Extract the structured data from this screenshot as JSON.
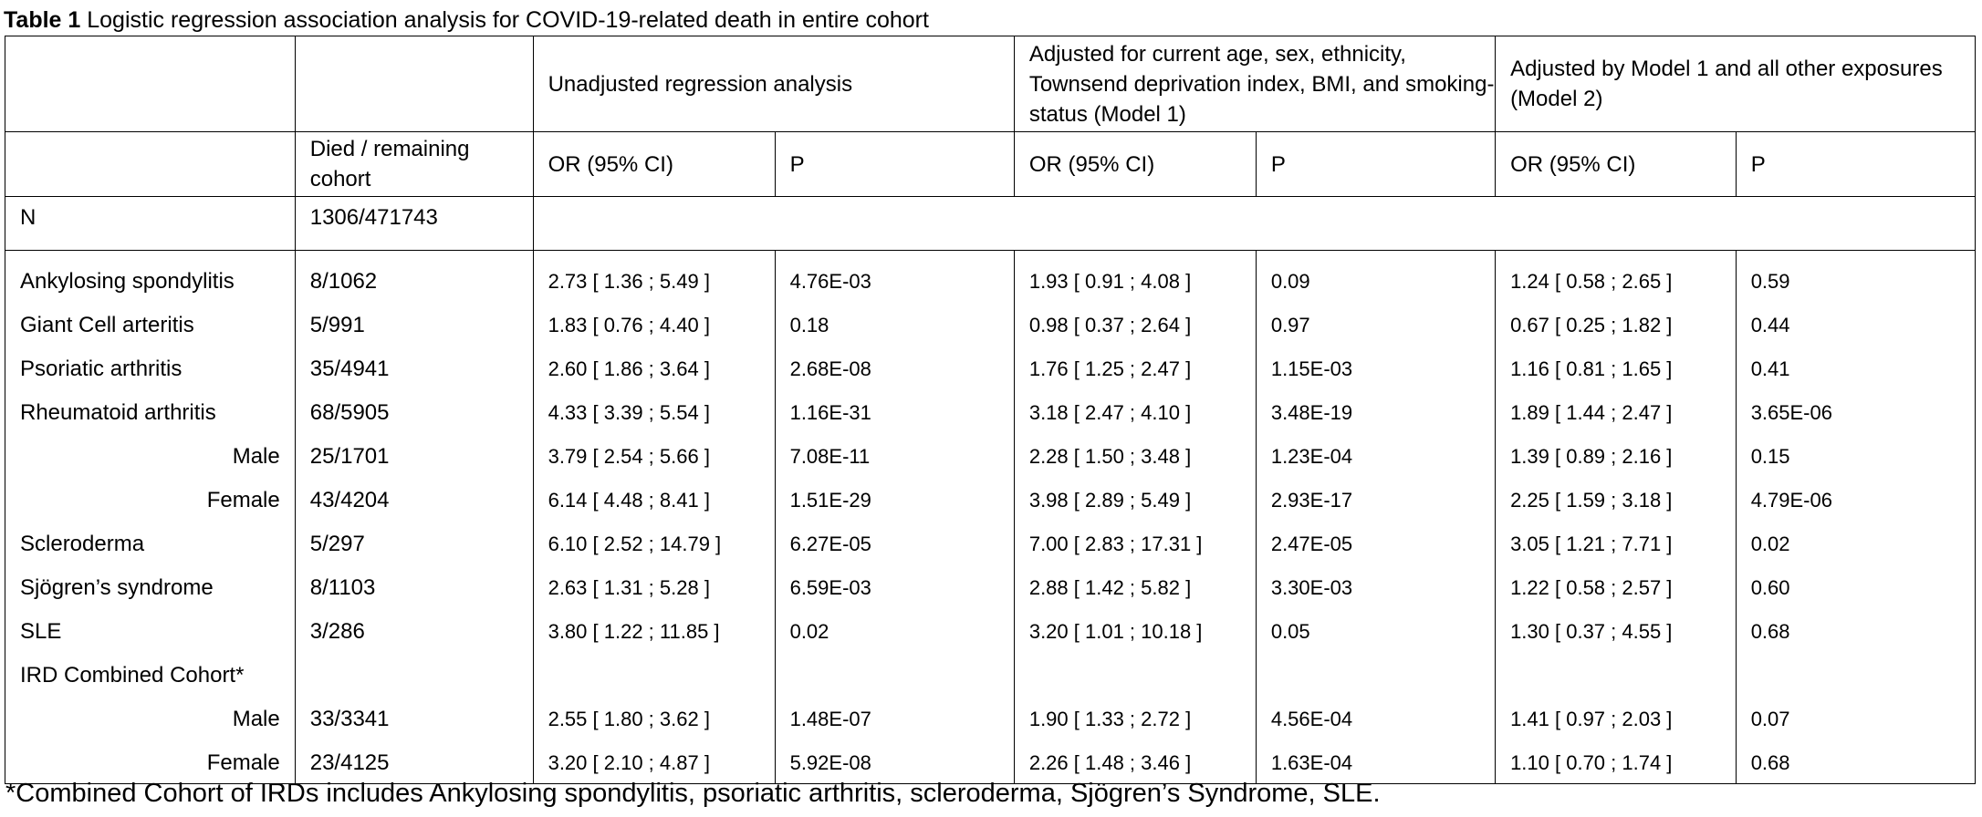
{
  "caption": {
    "label": "Table 1",
    "text": "Logistic regression association analysis for COVID-19-related death in entire cohort"
  },
  "header": {
    "groups": [
      "",
      "",
      "Unadjusted regression analysis",
      "Adjusted for current age, sex, ethnicity, Townsend deprivation index, BMI, and smoking-status (Model 1)",
      "Adjusted by Model 1 and all other exposures (Model 2)"
    ],
    "columns": [
      "",
      "Died / remaining cohort",
      "OR (95% CI)",
      "P",
      "OR (95% CI)",
      "P",
      "OR (95% CI)",
      "P"
    ]
  },
  "n_row": {
    "label": "N",
    "value": "1306/471743"
  },
  "rows": [
    {
      "label": "Ankylosing spondylitis",
      "indent": false,
      "cells": [
        "8/1062",
        "2.73 [ 1.36 ; 5.49 ]",
        "4.76E-03",
        "1.93 [ 0.91 ; 4.08 ]",
        "0.09",
        "1.24 [ 0.58 ; 2.65 ]",
        "0.59"
      ]
    },
    {
      "label": "Giant Cell arteritis",
      "indent": false,
      "cells": [
        "5/991",
        "1.83 [ 0.76 ; 4.40 ]",
        "0.18",
        "0.98 [ 0.37 ; 2.64 ]",
        "0.97",
        "0.67 [ 0.25 ; 1.82 ]",
        "0.44"
      ]
    },
    {
      "label": "Psoriatic arthritis",
      "indent": false,
      "cells": [
        "35/4941",
        "2.60 [ 1.86 ; 3.64 ]",
        "2.68E-08",
        "1.76 [ 1.25 ; 2.47 ]",
        "1.15E-03",
        "1.16 [ 0.81 ; 1.65 ]",
        "0.41"
      ]
    },
    {
      "label": "Rheumatoid arthritis",
      "indent": false,
      "cells": [
        "68/5905",
        "4.33 [ 3.39 ; 5.54 ]",
        "1.16E-31",
        "3.18 [ 2.47 ; 4.10 ]",
        "3.48E-19",
        "1.89 [ 1.44 ; 2.47 ]",
        "3.65E-06"
      ]
    },
    {
      "label": "Male",
      "indent": true,
      "cells": [
        "25/1701",
        "3.79 [ 2.54 ; 5.66 ]",
        "7.08E-11",
        "2.28 [ 1.50 ; 3.48 ]",
        "1.23E-04",
        "1.39 [ 0.89 ; 2.16 ]",
        "0.15"
      ]
    },
    {
      "label": "Female",
      "indent": true,
      "cells": [
        "43/4204",
        "6.14 [ 4.48 ; 8.41 ]",
        "1.51E-29",
        "3.98 [ 2.89 ; 5.49 ]",
        "2.93E-17",
        "2.25 [ 1.59 ; 3.18 ]",
        "4.79E-06"
      ]
    },
    {
      "label": "Scleroderma",
      "indent": false,
      "cells": [
        "5/297",
        "6.10 [ 2.52 ; 14.79 ]",
        "6.27E-05",
        "7.00 [ 2.83 ; 17.31 ]",
        "2.47E-05",
        "3.05 [ 1.21 ; 7.71 ]",
        "0.02"
      ]
    },
    {
      "label": "Sjögren’s syndrome",
      "indent": false,
      "cells": [
        "8/1103",
        "2.63 [ 1.31 ; 5.28 ]",
        "6.59E-03",
        "2.88 [ 1.42 ; 5.82 ]",
        "3.30E-03",
        "1.22 [ 0.58 ; 2.57 ]",
        "0.60"
      ]
    },
    {
      "label": "SLE",
      "indent": false,
      "cells": [
        "3/286",
        "3.80 [ 1.22 ; 11.85 ]",
        "0.02",
        "3.20 [ 1.01 ; 10.18 ]",
        "0.05",
        "1.30 [ 0.37 ; 4.55 ]",
        "0.68"
      ]
    },
    {
      "label": "IRD Combined Cohort*",
      "indent": false,
      "cells": [
        "",
        "",
        "",
        "",
        "",
        "",
        ""
      ]
    },
    {
      "label": "Male",
      "indent": true,
      "cells": [
        "33/3341",
        "2.55 [ 1.80 ; 3.62 ]",
        "1.48E-07",
        "1.90 [ 1.33 ; 2.72 ]",
        "4.56E-04",
        "1.41 [ 0.97 ; 2.03 ]",
        "0.07"
      ]
    },
    {
      "label": "Female",
      "indent": true,
      "cells": [
        "23/4125",
        "3.20 [ 2.10 ; 4.87 ]",
        "5.92E-08",
        "2.26 [ 1.48 ; 3.46 ]",
        "1.63E-04",
        "1.10  [ 0.70 ; 1.74 ]",
        "0.68"
      ]
    }
  ],
  "footnote": "*Combined Cohort of IRDs includes Ankylosing spondylitis, psoriatic arthritis, scleroderma, Sjögren’s Syndrome, SLE."
}
